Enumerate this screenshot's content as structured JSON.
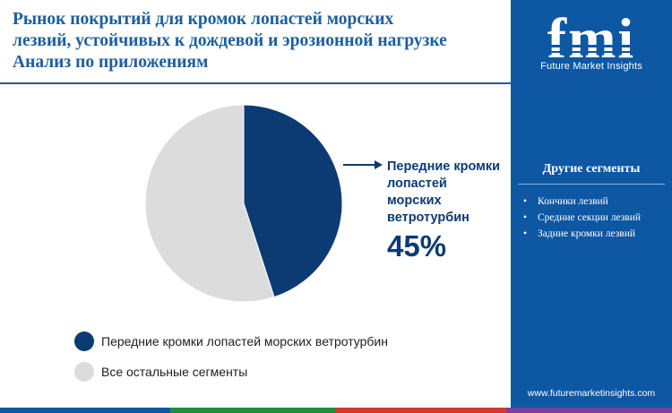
{
  "title_lines": [
    "Рынок покрытий для кромок лопастей морских",
    "лезвий, устойчивых к дождевой и эрозионной нагрузке",
    "Анализ по приложениям"
  ],
  "chart_data": {
    "type": "pie",
    "slices": [
      {
        "label": "Передние кромки лопастей морских ветротурбин",
        "value": 45,
        "color": "#0c3b73"
      },
      {
        "label": "Все остальные сегменты",
        "value": 55,
        "color": "#dcdcdc"
      }
    ],
    "highlight": {
      "lines": [
        "Передние кромки",
        "лопастей",
        "морских",
        "ветротурбин"
      ],
      "value_text": "45%"
    }
  },
  "legend": [
    {
      "label": "Передние кромки лопастей морских ветротурбин",
      "color": "#0c3b73"
    },
    {
      "label": "Все остальные сегменты",
      "color": "#dcdcdc"
    }
  ],
  "side_panel": {
    "logo_text": "fmi",
    "logo_subtitle": "Future Market Insights",
    "heading": "Другие сегменты",
    "items": [
      "Кончики лезвий",
      "Средние секции лезвий",
      "Задние кромки лезвий"
    ],
    "url": "www.futuremarketinsights.com"
  },
  "colors": {
    "title": "#1d5f9c",
    "panel": "#0d57a3",
    "accent_dark": "#0c3b73",
    "footer": [
      "#0d57a3",
      "#1e8e3e",
      "#d33a2c",
      "#7b3fa0"
    ]
  }
}
